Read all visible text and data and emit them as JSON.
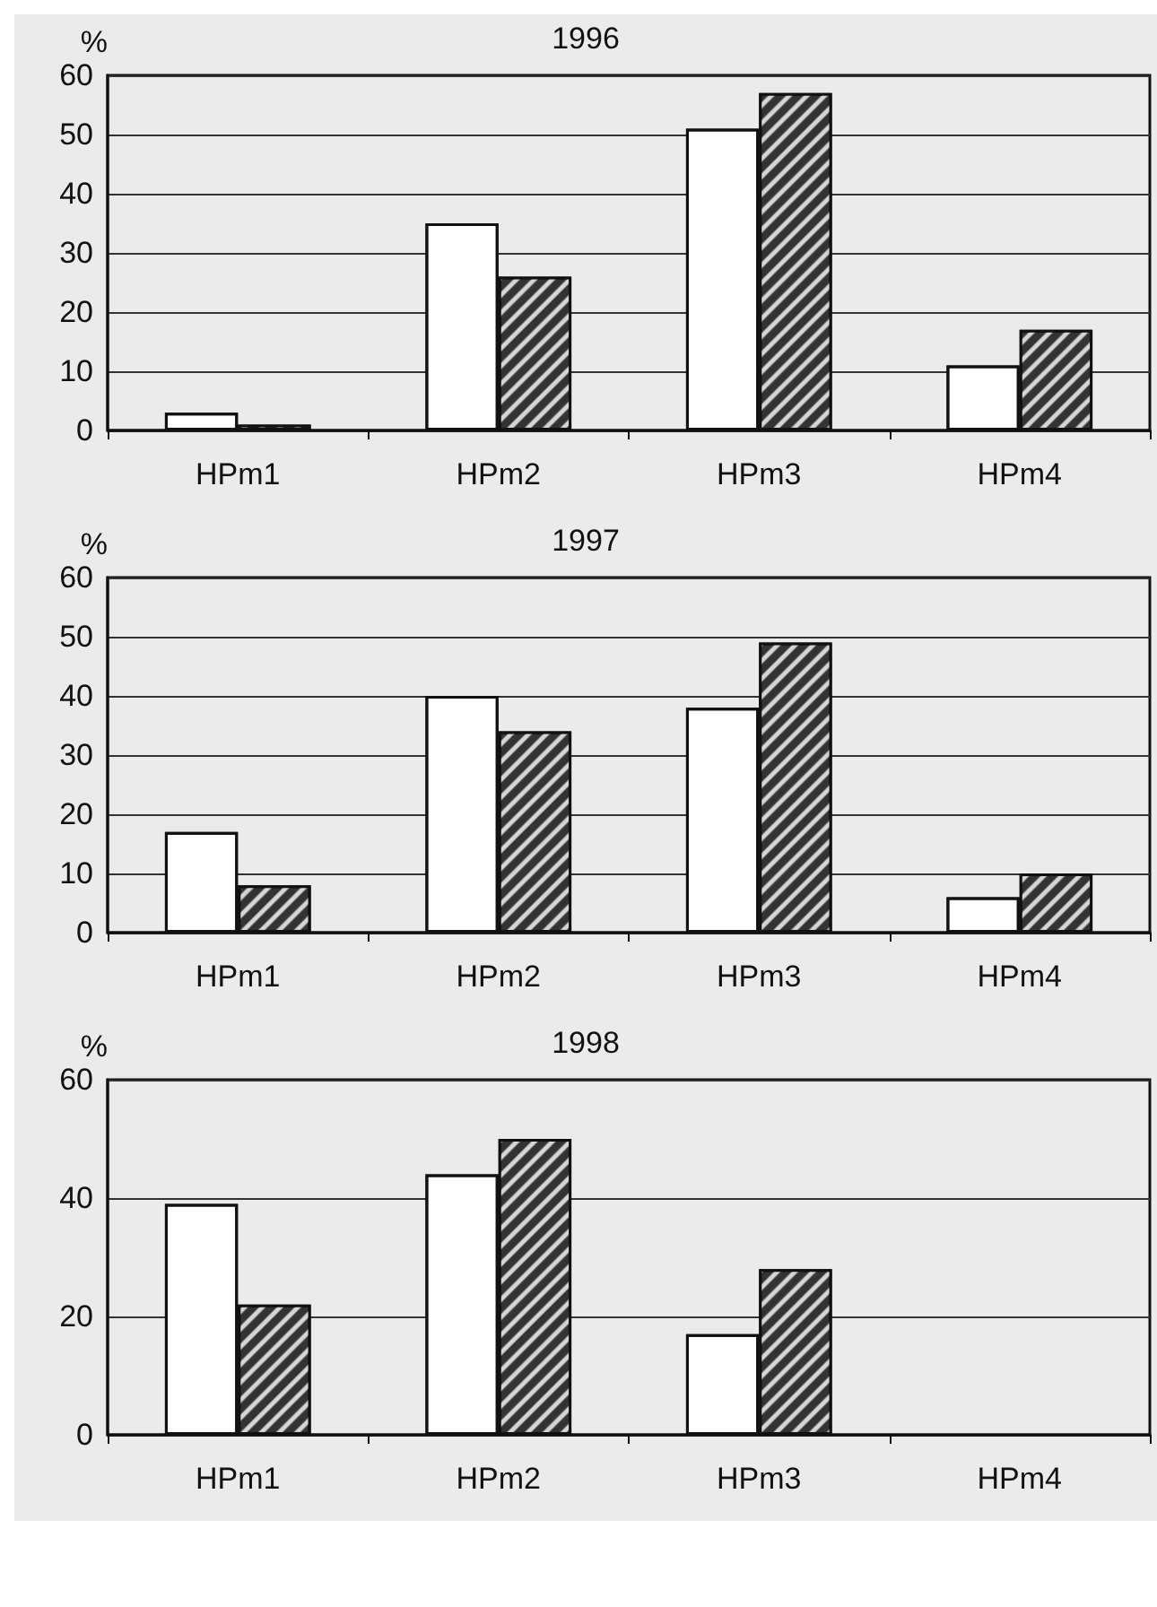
{
  "chart_data": [
    {
      "type": "bar",
      "title": "1996",
      "ylabel": "%",
      "categories": [
        "HPm1",
        "HPm2",
        "HPm3",
        "HPm4"
      ],
      "series": [
        {
          "color": "#ffffff",
          "values": [
            3,
            35,
            51,
            11
          ]
        },
        {
          "color": "#333333",
          "values": [
            1,
            26,
            57,
            17
          ]
        }
      ],
      "ylim": [
        0,
        60
      ],
      "yticks": [
        0,
        10,
        20,
        30,
        40,
        50,
        60
      ],
      "grid": "y"
    },
    {
      "type": "bar",
      "title": "1997",
      "ylabel": "%",
      "categories": [
        "HPm1",
        "HPm2",
        "HPm3",
        "HPm4"
      ],
      "series": [
        {
          "color": "#ffffff",
          "values": [
            17,
            40,
            38,
            6
          ]
        },
        {
          "color": "#333333",
          "values": [
            8,
            34,
            49,
            10
          ]
        }
      ],
      "ylim": [
        0,
        60
      ],
      "yticks": [
        0,
        10,
        20,
        30,
        40,
        50,
        60
      ],
      "grid": "y"
    },
    {
      "type": "bar",
      "title": "1998",
      "ylabel": "%",
      "categories": [
        "HPm1",
        "HPm2",
        "HPm3",
        "HPm4"
      ],
      "series": [
        {
          "color": "#ffffff",
          "values": [
            39,
            44,
            17,
            null
          ]
        },
        {
          "color": "#333333",
          "values": [
            22,
            50,
            28,
            null
          ]
        }
      ],
      "ylim": [
        0,
        60
      ],
      "yticks": [
        0,
        20,
        40,
        60
      ],
      "grid": "y"
    }
  ]
}
